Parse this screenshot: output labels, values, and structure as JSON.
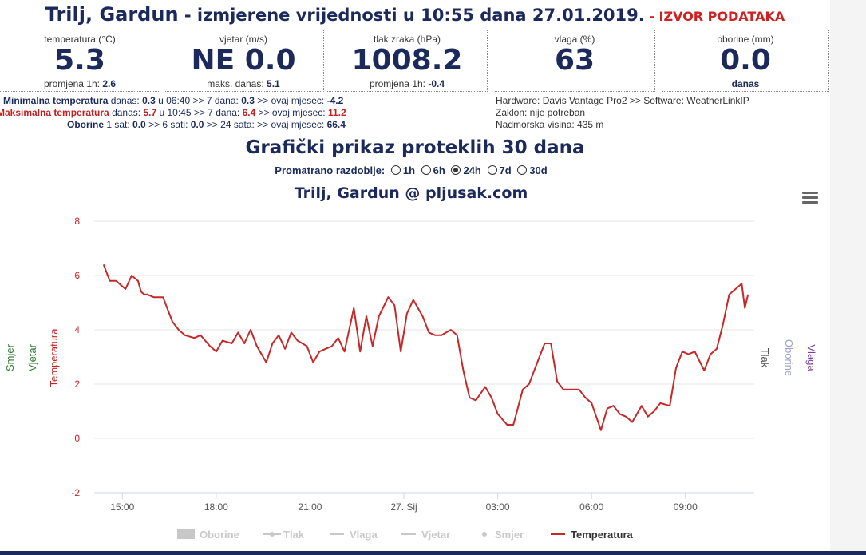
{
  "header": {
    "station": "Trilj, Gardun",
    "title_rest": " - izmjerene vrijednosti u 10:55 dana 27.01.2019.",
    "source_link": " - IZVOR PODATAKA"
  },
  "stats": [
    {
      "label": "temperatura (°C)",
      "value": "5.3",
      "sub_label": "promjena 1h:",
      "sub_value": "2.6"
    },
    {
      "label": "vjetar (m/s)",
      "value": "NE 0.0",
      "sub_label": "maks. danas:",
      "sub_value": "5.1"
    },
    {
      "label": "tlak zraka (hPa)",
      "value": "1008.2",
      "sub_label": "promjena 1h:",
      "sub_value": "-0.4"
    },
    {
      "label": "vlaga (%)",
      "value": "63",
      "sub_label": "",
      "sub_value": ""
    },
    {
      "label": "oborine (mm)",
      "value": "0.0",
      "sub_label": "",
      "sub_value": "danas"
    }
  ],
  "records": {
    "min": {
      "title": "Minimalna temperatura",
      "t1": " danas: ",
      "v1": "0.3",
      "t2": " u 06:40 >> 7 dana: ",
      "v2": "0.3",
      "t3": " >> ovaj mjesec: ",
      "v3": "-4.2"
    },
    "max": {
      "title": "Maksimalna temperatura",
      "t1": " danas: ",
      "v1": "5.7",
      "t2": " u 10:45 >> 7 dana: ",
      "v2": "6.4",
      "t3": " >> ovaj mjesec: ",
      "v3": "11.2"
    },
    "rain": {
      "title": "Oborine",
      "t1": " 1 sat: ",
      "v1": "0.0",
      "t2": " >> 6 sati: ",
      "v2": "0.0",
      "t3": " >> 24 sata:  >> ovaj mjesec: ",
      "v3": "66.4"
    }
  },
  "hardware": {
    "line1": "Hardware: Davis Vantage Pro2 >> Software: WeatherLinkIP",
    "line2": "Zaklon: nije potreban",
    "line3": "Nadmorska visina: 435 m"
  },
  "section_title": "Grafički prikaz proteklih 30 dana",
  "period": {
    "label": "Promatrano razdoblje:",
    "options": [
      {
        "label": "1h",
        "selected": false
      },
      {
        "label": "6h",
        "selected": false
      },
      {
        "label": "24h",
        "selected": true
      },
      {
        "label": "7d",
        "selected": false
      },
      {
        "label": "30d",
        "selected": false
      }
    ]
  },
  "chart_data": {
    "type": "line",
    "title": "Trilj, Gardun @ pljusak.com",
    "x_ticks": [
      "15:00",
      "18:00",
      "21:00",
      "27. Sij",
      "03:00",
      "06:00",
      "09:00"
    ],
    "x_tick_hours": [
      15,
      18,
      21,
      24,
      27,
      30,
      33
    ],
    "xlim_hours": [
      14.1,
      35.2
    ],
    "ylim": [
      -2,
      8
    ],
    "y_ticks": [
      -2,
      0,
      2,
      4,
      6,
      8
    ],
    "ylabel": "Temperatura",
    "left_axis_titles": [
      "Smjer",
      "Vjetar",
      "Temperatura"
    ],
    "right_axis_titles": [
      "Tlak",
      "Oborine",
      "Vlaga"
    ],
    "legend_position": "bottom",
    "legend": [
      {
        "name": "Oborine",
        "active": false
      },
      {
        "name": "Tlak",
        "active": false
      },
      {
        "name": "Vlaga",
        "active": false
      },
      {
        "name": "Vjetar",
        "active": false
      },
      {
        "name": "Smjer",
        "active": false
      },
      {
        "name": "Temperatura",
        "active": true
      }
    ],
    "colors": {
      "temperature": "#c62828",
      "axis_text": "#c62828",
      "inactive": "#c8c8c8",
      "grid": "#e6e6e6"
    },
    "series": [
      {
        "name": "Temperatura",
        "x_hours": [
          14.4,
          14.6,
          14.8,
          15.1,
          15.3,
          15.5,
          15.6,
          15.7,
          15.8,
          16.0,
          16.3,
          16.6,
          16.8,
          17.0,
          17.3,
          17.5,
          17.8,
          18.0,
          18.2,
          18.5,
          18.7,
          18.9,
          19.1,
          19.3,
          19.6,
          19.8,
          20.0,
          20.2,
          20.4,
          20.6,
          20.9,
          21.1,
          21.3,
          21.5,
          21.7,
          21.9,
          22.1,
          22.4,
          22.6,
          22.8,
          23.0,
          23.2,
          23.5,
          23.7,
          23.9,
          24.1,
          24.3,
          24.6,
          24.8,
          25.0,
          25.2,
          25.5,
          25.7,
          25.9,
          26.1,
          26.3,
          26.6,
          26.8,
          27.0,
          27.3,
          27.5,
          27.8,
          28.0,
          28.2,
          28.5,
          28.7,
          28.9,
          29.1,
          29.4,
          29.6,
          29.8,
          30.0,
          30.3,
          30.5,
          30.7,
          30.9,
          31.1,
          31.3,
          31.6,
          31.8,
          32.0,
          32.2,
          32.5,
          32.7,
          32.9,
          33.1,
          33.3,
          33.6,
          33.8,
          34.0,
          34.2,
          34.4,
          34.6,
          34.7,
          34.8,
          34.9,
          35.0
        ],
        "values": [
          6.4,
          5.8,
          5.8,
          5.5,
          6.0,
          5.8,
          5.4,
          5.3,
          5.3,
          5.2,
          5.2,
          4.3,
          4.0,
          3.8,
          3.7,
          3.8,
          3.4,
          3.2,
          3.6,
          3.5,
          3.9,
          3.5,
          4.0,
          3.4,
          2.8,
          3.5,
          3.8,
          3.3,
          3.9,
          3.6,
          3.4,
          2.8,
          3.2,
          3.3,
          3.4,
          3.7,
          3.2,
          4.8,
          3.2,
          4.5,
          3.4,
          4.5,
          5.2,
          4.9,
          3.2,
          4.6,
          5.1,
          4.5,
          3.9,
          3.8,
          3.8,
          4.0,
          3.8,
          2.5,
          1.5,
          1.4,
          1.9,
          1.5,
          0.9,
          0.5,
          0.5,
          1.8,
          2.0,
          2.6,
          3.5,
          3.5,
          2.1,
          1.8,
          1.8,
          1.8,
          1.5,
          1.3,
          0.3,
          1.1,
          1.2,
          0.9,
          0.8,
          0.6,
          1.2,
          0.8,
          1.0,
          1.3,
          1.2,
          2.6,
          3.2,
          3.1,
          3.2,
          2.5,
          3.1,
          3.3,
          4.2,
          5.3,
          5.5,
          5.6,
          5.7,
          4.8,
          5.3
        ]
      }
    ]
  }
}
